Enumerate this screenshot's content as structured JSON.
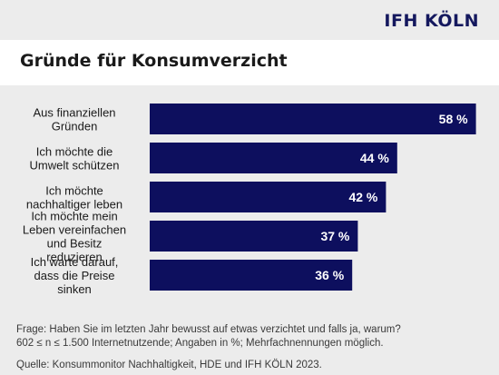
{
  "brand": "IFH KÖLN",
  "colors": {
    "bar": "#0d0f5e",
    "brand": "#14185e",
    "bar_label": "#ffffff",
    "category_label": "#1a1a1a"
  },
  "chart_data": {
    "type": "bar",
    "orientation": "horizontal",
    "title": "Gründe für Konsumverzicht",
    "categories": [
      [
        "Aus finanziellen",
        "Gründen"
      ],
      [
        "Ich möchte die",
        "Umwelt schützen"
      ],
      [
        "Ich möchte",
        "nachhaltiger leben"
      ],
      [
        "Ich möchte mein",
        "Leben vereinfachen",
        "und Besitz",
        "reduzieren"
      ],
      [
        "Ich warte darauf,",
        "dass die Preise",
        "sinken"
      ]
    ],
    "values": [
      58,
      44,
      42,
      37,
      36
    ],
    "value_labels": [
      "58 %",
      "44 %",
      "42 %",
      "37 %",
      "36 %"
    ],
    "xlim": [
      0,
      60
    ],
    "grid": false,
    "legend": "none"
  },
  "footnotes": {
    "question": "Frage: Haben Sie im letzten Jahr bewusst auf etwas verzichtet und falls ja, warum?",
    "sample": "602 ≤ n ≤ 1.500 Internetnutzende; Angaben in %; Mehrfachnennungen möglich.",
    "source": "Quelle: Konsummonitor Nachhaltigkeit, HDE und IFH KÖLN 2023."
  }
}
